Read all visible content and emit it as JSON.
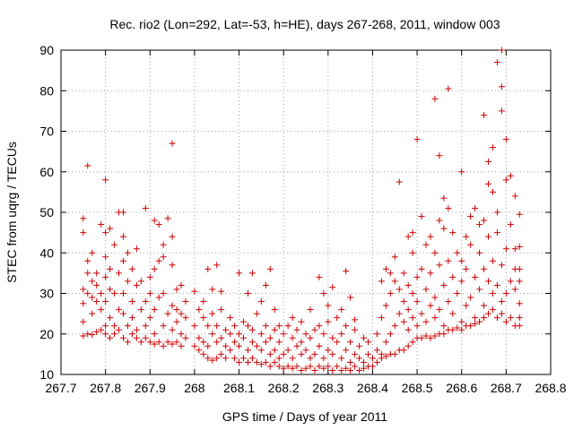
{
  "chart_data": {
    "type": "scatter",
    "title": "Rec. rio2 (Lon=292, Lat=-53, h=HE), days 267-268, 2011, window 003",
    "xlabel": "GPS time / Days of year 2011",
    "ylabel": "STEC from uqrg / TECUs",
    "xlim": [
      267.7,
      268.8
    ],
    "ylim": [
      10,
      90
    ],
    "xticks": [
      267.7,
      267.8,
      267.9,
      268,
      268.1,
      268.2,
      268.3,
      268.4,
      268.5,
      268.6,
      268.7,
      268.8
    ],
    "xtick_labels": [
      "267.7",
      "267.8",
      "267.9",
      "268",
      "268.1",
      "268.2",
      "268.3",
      "268.4",
      "268.5",
      "268.6",
      "268.7",
      "268.8"
    ],
    "yticks": [
      10,
      20,
      30,
      40,
      50,
      60,
      70,
      80,
      90
    ],
    "ytick_labels": [
      "10",
      "20",
      "30",
      "40",
      "50",
      "60",
      "70",
      "80",
      "90"
    ],
    "grid": true,
    "marker": "plus",
    "color": "#cc0000",
    "points": [
      [
        267.75,
        19.5
      ],
      [
        267.75,
        23
      ],
      [
        267.75,
        27.5
      ],
      [
        267.75,
        31
      ],
      [
        267.75,
        45
      ],
      [
        267.75,
        48.5
      ],
      [
        267.76,
        20
      ],
      [
        267.76,
        30
      ],
      [
        267.76,
        35
      ],
      [
        267.76,
        38
      ],
      [
        267.76,
        61.5
      ],
      [
        267.77,
        19.8
      ],
      [
        267.77,
        25
      ],
      [
        267.77,
        29
      ],
      [
        267.77,
        33
      ],
      [
        267.77,
        40
      ],
      [
        267.78,
        20.5
      ],
      [
        267.78,
        28
      ],
      [
        267.78,
        32
      ],
      [
        267.78,
        35
      ],
      [
        267.79,
        21
      ],
      [
        267.79,
        26
      ],
      [
        267.79,
        30
      ],
      [
        267.79,
        47
      ],
      [
        267.8,
        20
      ],
      [
        267.8,
        22
      ],
      [
        267.8,
        28
      ],
      [
        267.8,
        34
      ],
      [
        267.8,
        39
      ],
      [
        267.8,
        45
      ],
      [
        267.8,
        58
      ],
      [
        267.81,
        19
      ],
      [
        267.81,
        24
      ],
      [
        267.81,
        31
      ],
      [
        267.81,
        36
      ],
      [
        267.81,
        46
      ],
      [
        267.82,
        20
      ],
      [
        267.82,
        22
      ],
      [
        267.82,
        30
      ],
      [
        267.82,
        42
      ],
      [
        267.83,
        21
      ],
      [
        267.83,
        26
      ],
      [
        267.83,
        35
      ],
      [
        267.83,
        50
      ],
      [
        267.84,
        19
      ],
      [
        267.84,
        25
      ],
      [
        267.84,
        30
      ],
      [
        267.84,
        38
      ],
      [
        267.84,
        44
      ],
      [
        267.84,
        50
      ],
      [
        267.85,
        18
      ],
      [
        267.85,
        22
      ],
      [
        267.85,
        33
      ],
      [
        267.85,
        40
      ],
      [
        267.86,
        20
      ],
      [
        267.86,
        24
      ],
      [
        267.86,
        28
      ],
      [
        267.86,
        36
      ],
      [
        267.87,
        19
      ],
      [
        267.87,
        21
      ],
      [
        267.87,
        32
      ],
      [
        267.87,
        41
      ],
      [
        267.88,
        18
      ],
      [
        267.88,
        26
      ],
      [
        267.88,
        33
      ],
      [
        267.89,
        19
      ],
      [
        267.89,
        22
      ],
      [
        267.89,
        28
      ],
      [
        267.89,
        51
      ],
      [
        267.9,
        18
      ],
      [
        267.9,
        24
      ],
      [
        267.9,
        30
      ],
      [
        267.9,
        34
      ],
      [
        267.91,
        17.5
      ],
      [
        267.91,
        20
      ],
      [
        267.91,
        26
      ],
      [
        267.91,
        36
      ],
      [
        267.91,
        48
      ],
      [
        267.92,
        18
      ],
      [
        267.92,
        29
      ],
      [
        267.92,
        38
      ],
      [
        267.92,
        47
      ],
      [
        267.93,
        17
      ],
      [
        267.93,
        22
      ],
      [
        267.93,
        30
      ],
      [
        267.93,
        39
      ],
      [
        267.93,
        42
      ],
      [
        267.94,
        18
      ],
      [
        267.94,
        25
      ],
      [
        267.94,
        48.5
      ],
      [
        267.95,
        17.5
      ],
      [
        267.95,
        21
      ],
      [
        267.95,
        27
      ],
      [
        267.95,
        37
      ],
      [
        267.95,
        44
      ],
      [
        267.95,
        67
      ],
      [
        267.96,
        18
      ],
      [
        267.96,
        23
      ],
      [
        267.96,
        26
      ],
      [
        267.96,
        31
      ],
      [
        267.97,
        17
      ],
      [
        267.97,
        20
      ],
      [
        267.97,
        25
      ],
      [
        267.97,
        32
      ],
      [
        267.98,
        19
      ],
      [
        267.98,
        24
      ],
      [
        267.98,
        28
      ],
      [
        268.0,
        17
      ],
      [
        268.0,
        22
      ],
      [
        268.0,
        30.5
      ],
      [
        268.01,
        16
      ],
      [
        268.01,
        19
      ],
      [
        268.01,
        26
      ],
      [
        268.02,
        15
      ],
      [
        268.02,
        18
      ],
      [
        268.02,
        24
      ],
      [
        268.02,
        28
      ],
      [
        268.03,
        14
      ],
      [
        268.03,
        17
      ],
      [
        268.03,
        22
      ],
      [
        268.03,
        36
      ],
      [
        268.04,
        13.5
      ],
      [
        268.04,
        20
      ],
      [
        268.04,
        25
      ],
      [
        268.04,
        31
      ],
      [
        268.05,
        14
      ],
      [
        268.05,
        18
      ],
      [
        268.05,
        22
      ],
      [
        268.05,
        37
      ],
      [
        268.06,
        15
      ],
      [
        268.06,
        19
      ],
      [
        268.06,
        26
      ],
      [
        268.06,
        30.5
      ],
      [
        268.07,
        14
      ],
      [
        268.07,
        17
      ],
      [
        268.07,
        21
      ],
      [
        268.08,
        16
      ],
      [
        268.08,
        20
      ],
      [
        268.08,
        24
      ],
      [
        268.09,
        14
      ],
      [
        268.09,
        18
      ],
      [
        268.09,
        22
      ],
      [
        268.1,
        13
      ],
      [
        268.1,
        17
      ],
      [
        268.1,
        20
      ],
      [
        268.1,
        35
      ],
      [
        268.11,
        14
      ],
      [
        268.11,
        19
      ],
      [
        268.11,
        23
      ],
      [
        268.12,
        13
      ],
      [
        268.12,
        16
      ],
      [
        268.12,
        22
      ],
      [
        268.12,
        30
      ],
      [
        268.13,
        14
      ],
      [
        268.13,
        18
      ],
      [
        268.13,
        21
      ],
      [
        268.13,
        35
      ],
      [
        268.14,
        13
      ],
      [
        268.14,
        17
      ],
      [
        268.14,
        25
      ],
      [
        268.15,
        12.5
      ],
      [
        268.15,
        16
      ],
      [
        268.15,
        20
      ],
      [
        268.15,
        28
      ],
      [
        268.16,
        13
      ],
      [
        268.16,
        18
      ],
      [
        268.16,
        22
      ],
      [
        268.16,
        32
      ],
      [
        268.17,
        12
      ],
      [
        268.17,
        15
      ],
      [
        268.17,
        19
      ],
      [
        268.17,
        36
      ],
      [
        268.18,
        13
      ],
      [
        268.18,
        16
      ],
      [
        268.18,
        21
      ],
      [
        268.18,
        26
      ],
      [
        268.19,
        12
      ],
      [
        268.19,
        14
      ],
      [
        268.19,
        18
      ],
      [
        268.19,
        22
      ],
      [
        268.2,
        11.5
      ],
      [
        268.2,
        15
      ],
      [
        268.2,
        20
      ],
      [
        268.21,
        12
      ],
      [
        268.21,
        16
      ],
      [
        268.21,
        22
      ],
      [
        268.22,
        11.5
      ],
      [
        268.22,
        14
      ],
      [
        268.22,
        19
      ],
      [
        268.22,
        24
      ],
      [
        268.23,
        12
      ],
      [
        268.23,
        17
      ],
      [
        268.23,
        21
      ],
      [
        268.24,
        11
      ],
      [
        268.24,
        15
      ],
      [
        268.24,
        18
      ],
      [
        268.24,
        23
      ],
      [
        268.25,
        11.5
      ],
      [
        268.25,
        16
      ],
      [
        268.25,
        20
      ],
      [
        268.26,
        12
      ],
      [
        268.26,
        14
      ],
      [
        268.26,
        19
      ],
      [
        268.26,
        26
      ],
      [
        268.27,
        11
      ],
      [
        268.27,
        15
      ],
      [
        268.27,
        21
      ],
      [
        268.28,
        12
      ],
      [
        268.28,
        17
      ],
      [
        268.28,
        22
      ],
      [
        268.28,
        34
      ],
      [
        268.29,
        11.5
      ],
      [
        268.29,
        14
      ],
      [
        268.29,
        20
      ],
      [
        268.29,
        30
      ],
      [
        268.3,
        12
      ],
      [
        268.3,
        16
      ],
      [
        268.3,
        23
      ],
      [
        268.3,
        27
      ],
      [
        268.31,
        11
      ],
      [
        268.31,
        15
      ],
      [
        268.31,
        19
      ],
      [
        268.31,
        31.5
      ],
      [
        268.32,
        12
      ],
      [
        268.32,
        18
      ],
      [
        268.32,
        24
      ],
      [
        268.33,
        11
      ],
      [
        268.33,
        14
      ],
      [
        268.33,
        20
      ],
      [
        268.33,
        26
      ],
      [
        268.34,
        11.5
      ],
      [
        268.34,
        16
      ],
      [
        268.34,
        22
      ],
      [
        268.34,
        35.5
      ],
      [
        268.35,
        11
      ],
      [
        268.35,
        13
      ],
      [
        268.35,
        18
      ],
      [
        268.35,
        29
      ],
      [
        268.36,
        12
      ],
      [
        268.36,
        15
      ],
      [
        268.36,
        21
      ],
      [
        268.36,
        23.5
      ],
      [
        268.37,
        11
      ],
      [
        268.37,
        14
      ],
      [
        268.37,
        17
      ],
      [
        268.38,
        11.5
      ],
      [
        268.38,
        13
      ],
      [
        268.38,
        19
      ],
      [
        268.39,
        12
      ],
      [
        268.39,
        15
      ],
      [
        268.39,
        18
      ],
      [
        268.4,
        12
      ],
      [
        268.4,
        14
      ],
      [
        268.41,
        13
      ],
      [
        268.41,
        16
      ],
      [
        268.41,
        20
      ],
      [
        268.42,
        14
      ],
      [
        268.42,
        15
      ],
      [
        268.42,
        24
      ],
      [
        268.42,
        33
      ],
      [
        268.43,
        14.5
      ],
      [
        268.43,
        18
      ],
      [
        268.43,
        27
      ],
      [
        268.43,
        36
      ],
      [
        268.44,
        15
      ],
      [
        268.44,
        20
      ],
      [
        268.44,
        30
      ],
      [
        268.44,
        35
      ],
      [
        268.45,
        15
      ],
      [
        268.45,
        22
      ],
      [
        268.45,
        33
      ],
      [
        268.45,
        39
      ],
      [
        268.46,
        16
      ],
      [
        268.46,
        25
      ],
      [
        268.46,
        31
      ],
      [
        268.46,
        57.5
      ],
      [
        268.47,
        16
      ],
      [
        268.47,
        23
      ],
      [
        268.47,
        28
      ],
      [
        268.47,
        35
      ],
      [
        268.48,
        17
      ],
      [
        268.48,
        21
      ],
      [
        268.48,
        26
      ],
      [
        268.48,
        32
      ],
      [
        268.48,
        44
      ],
      [
        268.49,
        18
      ],
      [
        268.49,
        24
      ],
      [
        268.49,
        30
      ],
      [
        268.49,
        40
      ],
      [
        268.49,
        45
      ],
      [
        268.5,
        19
      ],
      [
        268.5,
        22
      ],
      [
        268.5,
        28
      ],
      [
        268.5,
        34
      ],
      [
        268.5,
        68
      ],
      [
        268.51,
        19
      ],
      [
        268.51,
        25
      ],
      [
        268.51,
        36
      ],
      [
        268.51,
        49
      ],
      [
        268.52,
        19.5
      ],
      [
        268.52,
        23
      ],
      [
        268.52,
        31
      ],
      [
        268.52,
        42
      ],
      [
        268.53,
        19
      ],
      [
        268.53,
        27
      ],
      [
        268.53,
        35
      ],
      [
        268.53,
        44
      ],
      [
        268.54,
        19.5
      ],
      [
        268.54,
        24
      ],
      [
        268.54,
        29
      ],
      [
        268.54,
        40
      ],
      [
        268.54,
        78
      ],
      [
        268.55,
        20
      ],
      [
        268.55,
        26
      ],
      [
        268.55,
        37
      ],
      [
        268.55,
        48
      ],
      [
        268.55,
        64
      ],
      [
        268.56,
        20
      ],
      [
        268.56,
        22
      ],
      [
        268.56,
        32
      ],
      [
        268.56,
        46
      ],
      [
        268.56,
        53.5
      ],
      [
        268.57,
        21
      ],
      [
        268.57,
        28
      ],
      [
        268.57,
        38
      ],
      [
        268.57,
        51
      ],
      [
        268.57,
        80.5
      ],
      [
        268.58,
        21
      ],
      [
        268.58,
        25
      ],
      [
        268.58,
        34
      ],
      [
        268.58,
        45
      ],
      [
        268.59,
        21.5
      ],
      [
        268.59,
        30
      ],
      [
        268.59,
        40
      ],
      [
        268.6,
        21
      ],
      [
        268.6,
        23
      ],
      [
        268.6,
        33
      ],
      [
        268.6,
        38
      ],
      [
        268.6,
        60
      ],
      [
        268.61,
        22
      ],
      [
        268.61,
        27
      ],
      [
        268.61,
        36
      ],
      [
        268.61,
        44
      ],
      [
        268.62,
        22
      ],
      [
        268.62,
        29
      ],
      [
        268.62,
        42
      ],
      [
        268.62,
        49
      ],
      [
        268.63,
        22.5
      ],
      [
        268.63,
        24
      ],
      [
        268.63,
        34
      ],
      [
        268.63,
        51
      ],
      [
        268.64,
        23
      ],
      [
        268.64,
        31
      ],
      [
        268.64,
        40
      ],
      [
        268.64,
        47
      ],
      [
        268.65,
        24
      ],
      [
        268.65,
        27
      ],
      [
        268.65,
        36
      ],
      [
        268.65,
        48
      ],
      [
        268.65,
        74
      ],
      [
        268.66,
        25
      ],
      [
        268.66,
        33
      ],
      [
        268.66,
        44
      ],
      [
        268.66,
        57
      ],
      [
        268.66,
        62.5
      ],
      [
        268.67,
        26
      ],
      [
        268.67,
        30
      ],
      [
        268.67,
        38
      ],
      [
        268.67,
        55
      ],
      [
        268.67,
        66
      ],
      [
        268.68,
        24
      ],
      [
        268.68,
        32
      ],
      [
        268.68,
        45
      ],
      [
        268.68,
        50
      ],
      [
        268.68,
        87
      ],
      [
        268.69,
        25
      ],
      [
        268.69,
        28
      ],
      [
        268.69,
        37
      ],
      [
        268.69,
        75
      ],
      [
        268.69,
        81
      ],
      [
        268.69,
        90
      ],
      [
        268.7,
        23
      ],
      [
        268.7,
        30
      ],
      [
        268.7,
        41
      ],
      [
        268.7,
        58
      ],
      [
        268.7,
        68
      ],
      [
        268.71,
        24
      ],
      [
        268.71,
        33
      ],
      [
        268.71,
        47
      ],
      [
        268.71,
        59
      ],
      [
        268.72,
        22
      ],
      [
        268.72,
        31
      ],
      [
        268.72,
        36
      ],
      [
        268.72,
        41
      ],
      [
        268.72,
        54
      ],
      [
        268.73,
        22
      ],
      [
        268.73,
        24
      ],
      [
        268.73,
        27.5
      ],
      [
        268.73,
        33
      ],
      [
        268.73,
        36
      ],
      [
        268.73,
        41.5
      ],
      [
        268.73,
        49.5
      ]
    ]
  }
}
